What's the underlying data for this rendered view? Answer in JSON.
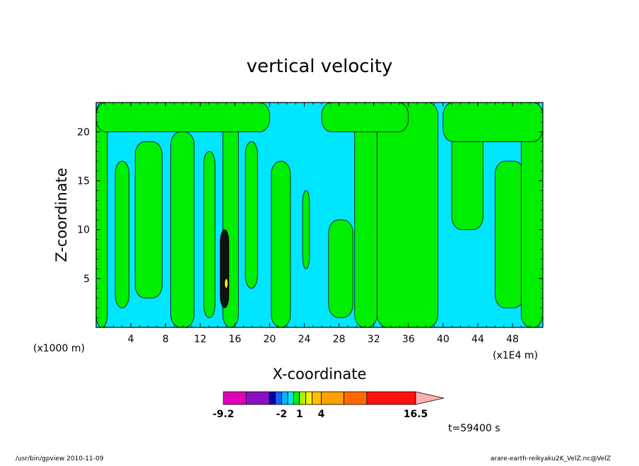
{
  "chart_data": {
    "type": "heatmap",
    "title": "vertical velocity",
    "xlabel": "X-coordinate",
    "ylabel": "Z-coordinate",
    "x_unit_left": "(x1000 m)",
    "x_unit_right": "(x1E4 m)",
    "xlim": [
      0,
      51.5
    ],
    "ylim": [
      0,
      23
    ],
    "x_ticks": [
      "4",
      "8",
      "12",
      "16",
      "20",
      "24",
      "28",
      "32",
      "36",
      "40",
      "44",
      "48"
    ],
    "x_tick_values": [
      4,
      8,
      12,
      16,
      20,
      24,
      28,
      32,
      36,
      40,
      44,
      48
    ],
    "y_ticks": [
      "5",
      "10",
      "15",
      "20"
    ],
    "y_tick_values": [
      5,
      10,
      15,
      20
    ],
    "time_label": "t=59400 s",
    "background_level_color": "#00e6ff",
    "positive_level_color": "#00ee00",
    "contour_line_color": "#000000",
    "regions": [
      {
        "level": "positive",
        "x0": 0.0,
        "x1": 1.3,
        "y0": 0,
        "y1": 23
      },
      {
        "level": "positive",
        "x0": 2.2,
        "x1": 3.8,
        "y0": 2,
        "y1": 17
      },
      {
        "level": "positive",
        "x0": 4.5,
        "x1": 7.6,
        "y0": 3,
        "y1": 19
      },
      {
        "level": "positive",
        "x0": 8.6,
        "x1": 11.3,
        "y0": 0,
        "y1": 20
      },
      {
        "level": "positive",
        "x0": 12.4,
        "x1": 13.7,
        "y0": 1,
        "y1": 18
      },
      {
        "level": "positive",
        "x0": 14.6,
        "x1": 16.4,
        "y0": 0,
        "y1": 21
      },
      {
        "level": "positive",
        "x0": 17.2,
        "x1": 18.6,
        "y0": 4,
        "y1": 19
      },
      {
        "level": "positive",
        "x0": 20.2,
        "x1": 22.4,
        "y0": 0,
        "y1": 17
      },
      {
        "level": "positive",
        "x0": 23.8,
        "x1": 24.6,
        "y0": 6,
        "y1": 14
      },
      {
        "level": "positive",
        "x0": 26.8,
        "x1": 29.6,
        "y0": 1,
        "y1": 11
      },
      {
        "level": "positive",
        "x0": 29.8,
        "x1": 32.4,
        "y0": 0,
        "y1": 23
      },
      {
        "level": "positive",
        "x0": 32.4,
        "x1": 39.4,
        "y0": 0,
        "y1": 23
      },
      {
        "level": "positive",
        "x0": 41.0,
        "x1": 44.6,
        "y0": 10,
        "y1": 21
      },
      {
        "level": "positive",
        "x0": 46.0,
        "x1": 49.3,
        "y0": 2,
        "y1": 17
      },
      {
        "level": "positive",
        "x0": 49.0,
        "x1": 51.5,
        "y0": 0,
        "y1": 23
      },
      {
        "level": "positive",
        "x0": 0.0,
        "x1": 20.0,
        "y0": 20,
        "y1": 23
      },
      {
        "level": "positive",
        "x0": 26.0,
        "x1": 36.0,
        "y0": 20,
        "y1": 23
      },
      {
        "level": "positive",
        "x0": 40.0,
        "x1": 51.5,
        "y0": 19,
        "y1": 23
      },
      {
        "level": "strong",
        "x0": 14.3,
        "x1": 15.3,
        "y0": 2,
        "y1": 10
      },
      {
        "level": "weak-positive",
        "x0": 14.8,
        "x1": 15.2,
        "y0": 4,
        "y1": 5
      }
    ],
    "colorbar": {
      "tick_labels": [
        "-9.2",
        "-2",
        "1",
        "4",
        "16.5"
      ],
      "tick_values": [
        -9.2,
        -2,
        1,
        4,
        16.5
      ],
      "colors": [
        "#e000b4",
        "#8a0fc2",
        "#00009a",
        "#1060ff",
        "#00b8ff",
        "#00e6ff",
        "#00ee00",
        "#aaf000",
        "#ffee00",
        "#ffc000",
        "#ffa000",
        "#ff6a00",
        "#ff1010",
        "#ff8080"
      ],
      "extend_color": "#ffb0b0"
    }
  },
  "footer": {
    "left": "/usr/bin/gpview  2010-11-09",
    "right": "arare-earth-reikyaku2K_VelZ.nc@VelZ"
  }
}
